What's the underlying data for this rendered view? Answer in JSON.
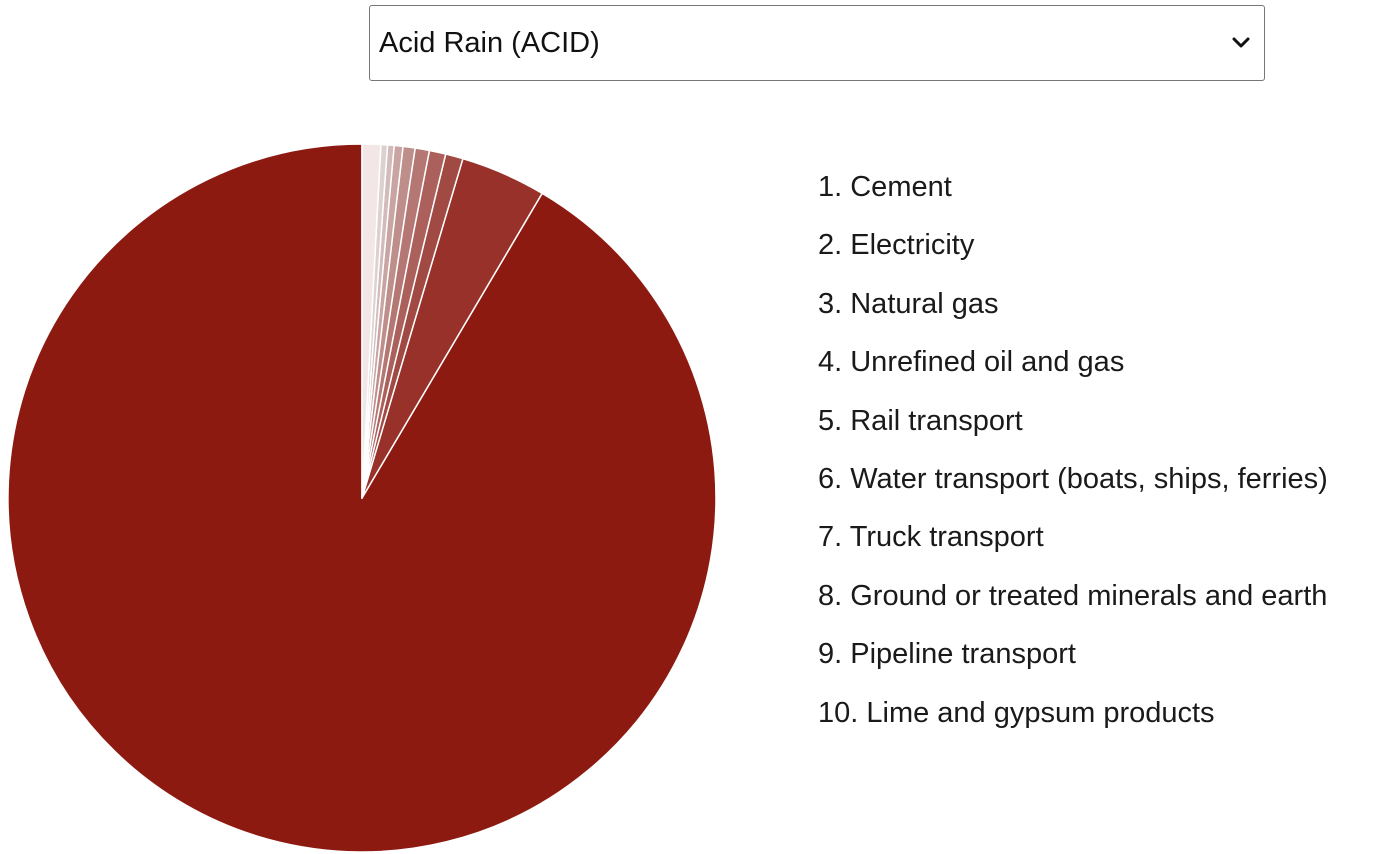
{
  "selector": {
    "selected": "Acid Rain (ACID)",
    "icon": "chevron-down-icon"
  },
  "chart_data": {
    "type": "pie",
    "title": "",
    "start": "12 o'clock",
    "direction": "counterclockwise",
    "legend_position": "right",
    "categories": [
      "Cement",
      "Electricity",
      "Natural gas",
      "Unrefined oil and gas",
      "Rail transport",
      "Water transport (boats, ships, ferries)",
      "Truck transport",
      "Ground or treated minerals and earth",
      "Pipeline transport",
      "Lime and gypsum products"
    ],
    "legend_labels": [
      "1. Cement",
      "2. Electricity",
      "3. Natural gas",
      "4. Unrefined oil and gas",
      "5. Rail transport",
      "6. Water transport (boats, ships, ferries)",
      "7. Truck transport",
      "8. Ground or treated minerals and earth",
      "9. Pipeline transport",
      "10. Lime and gypsum products"
    ],
    "values": [
      91.5,
      3.9,
      0.8,
      0.75,
      0.65,
      0.55,
      0.4,
      0.3,
      0.3,
      0.85
    ],
    "colors": [
      "#8d1a11",
      "#97312a",
      "#a14943",
      "#ab605b",
      "#b47774",
      "#be8e8b",
      "#c8a4a2",
      "#d2bbba",
      "#dcd1d0",
      "#f2e6e6"
    ]
  }
}
